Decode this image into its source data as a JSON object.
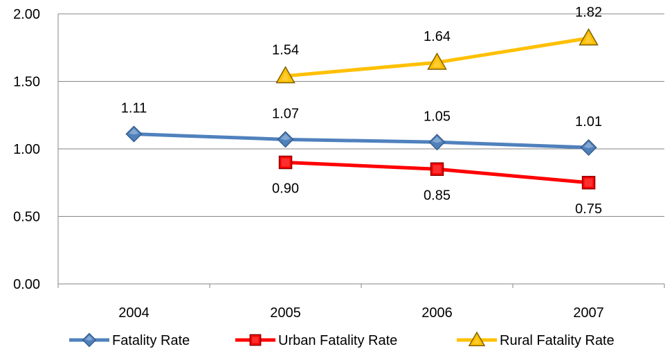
{
  "chart_data": {
    "type": "line",
    "categories": [
      "2004",
      "2005",
      "2006",
      "2007"
    ],
    "ylim": [
      0,
      2
    ],
    "y_ticks": [
      "0.00",
      "0.50",
      "1.00",
      "1.50",
      "2.00"
    ],
    "grid": true,
    "legend_position": "bottom",
    "series": [
      {
        "name": "Fatality Rate",
        "values": [
          1.11,
          1.07,
          1.05,
          1.01
        ],
        "labels": [
          "1.11",
          "1.07",
          "1.05",
          "1.01"
        ],
        "color": "#4F81BD",
        "marker": "diamond",
        "label_position": "above"
      },
      {
        "name": "Urban Fatality Rate",
        "values": [
          null,
          0.9,
          0.85,
          0.75
        ],
        "labels": [
          null,
          "0.90",
          "0.85",
          "0.75"
        ],
        "color": "#FF0000",
        "marker": "square",
        "label_position": "below"
      },
      {
        "name": "Rural Fatality Rate",
        "values": [
          null,
          1.54,
          1.64,
          1.82
        ],
        "labels": [
          null,
          "1.54",
          "1.64",
          "1.82"
        ],
        "color": "#FFC000",
        "marker": "triangle",
        "label_position": "above"
      }
    ]
  }
}
